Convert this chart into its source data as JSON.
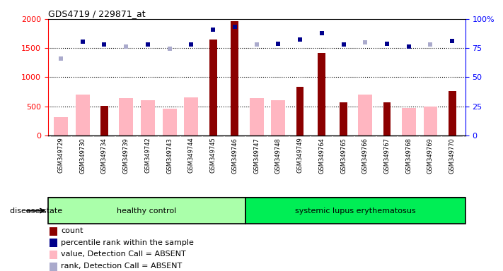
{
  "title": "GDS4719 / 229871_at",
  "samples": [
    "GSM349729",
    "GSM349730",
    "GSM349734",
    "GSM349739",
    "GSM349742",
    "GSM349743",
    "GSM349744",
    "GSM349745",
    "GSM349746",
    "GSM349747",
    "GSM349748",
    "GSM349749",
    "GSM349764",
    "GSM349765",
    "GSM349766",
    "GSM349767",
    "GSM349768",
    "GSM349769",
    "GSM349770"
  ],
  "count_values": [
    0,
    0,
    510,
    0,
    0,
    0,
    0,
    1650,
    1960,
    0,
    0,
    840,
    1420,
    570,
    0,
    570,
    0,
    0,
    760
  ],
  "absent_value": [
    320,
    700,
    0,
    640,
    610,
    460,
    650,
    0,
    0,
    640,
    600,
    0,
    0,
    0,
    700,
    0,
    470,
    500,
    0
  ],
  "percentile_dark": [
    false,
    true,
    true,
    false,
    true,
    false,
    true,
    true,
    true,
    false,
    true,
    true,
    true,
    true,
    false,
    true,
    true,
    false,
    true
  ],
  "percentile_values": [
    1320,
    1610,
    1560,
    1530,
    1560,
    1490,
    1560,
    1820,
    1870,
    1560,
    1580,
    1650,
    1760,
    1560,
    1600,
    1570,
    1530,
    1560,
    1620
  ],
  "healthy_count": 9,
  "group1_label": "healthy control",
  "group2_label": "systemic lupus erythematosus",
  "disease_state_label": "disease state",
  "legend": [
    "count",
    "percentile rank within the sample",
    "value, Detection Call = ABSENT",
    "rank, Detection Call = ABSENT"
  ],
  "ylim_left": [
    0,
    2000
  ],
  "ylim_right": [
    0,
    100
  ],
  "yticks_left": [
    0,
    500,
    1000,
    1500,
    2000
  ],
  "yticks_right": [
    0,
    25,
    50,
    75,
    100
  ],
  "colors": {
    "count": "#8B0000",
    "absent_value": "#FFB6C1",
    "percentile_dark": "#00008B",
    "percentile_light": "#AAAACC",
    "background_xticklabels": "#C8C8C8",
    "group1_bg": "#AAFFAA",
    "group2_bg": "#00EE55"
  }
}
